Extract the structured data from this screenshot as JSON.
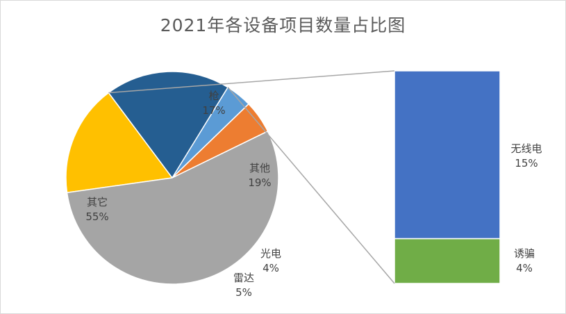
{
  "chart_data": {
    "type": "pie",
    "title": "2021年各设备项目数量占比图",
    "subtype": "pie-of-pie (bar of pie)",
    "slices": [
      {
        "label": "枪",
        "value": 17,
        "value_label": "17%",
        "color": "#ffc000"
      },
      {
        "label": "其他",
        "value": 19,
        "value_label": "19%",
        "color": "#255e91",
        "exploded_to_bar": true
      },
      {
        "label": "光电",
        "value": 4,
        "value_label": "4%",
        "color": "#5b9bd5"
      },
      {
        "label": "雷达",
        "value": 5,
        "value_label": "5%",
        "color": "#ed7d31"
      },
      {
        "label": "其它",
        "value": 55,
        "value_label": "55%",
        "color": "#a5a5a5"
      }
    ],
    "secondary_bar": [
      {
        "label": "无线电",
        "value": 15,
        "value_label": "15%",
        "color": "#4472c4"
      },
      {
        "label": "诱骗",
        "value": 4,
        "value_label": "4%",
        "color": "#70ad47"
      }
    ],
    "connector_color": "#a6a6a6"
  }
}
